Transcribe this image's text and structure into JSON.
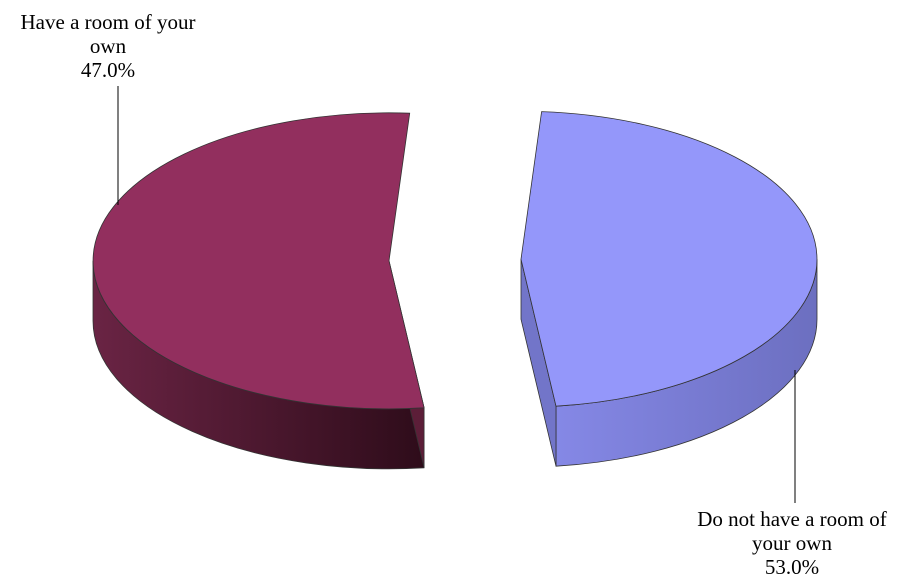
{
  "chart_data": {
    "type": "pie",
    "style": "3d-exploded",
    "slices": [
      {
        "label_lines": [
          "Have a room of your",
          "own"
        ],
        "percent_label": "47.0%",
        "value": 47.0,
        "color": "#9497FA",
        "side_color": "#7275C9"
      },
      {
        "label_lines": [
          "Do not have a room of",
          "your own"
        ],
        "percent_label": "53.0%",
        "value": 53.0,
        "color": "#922F5E",
        "side_color": "#5C1E38"
      }
    ],
    "legend": "none"
  }
}
